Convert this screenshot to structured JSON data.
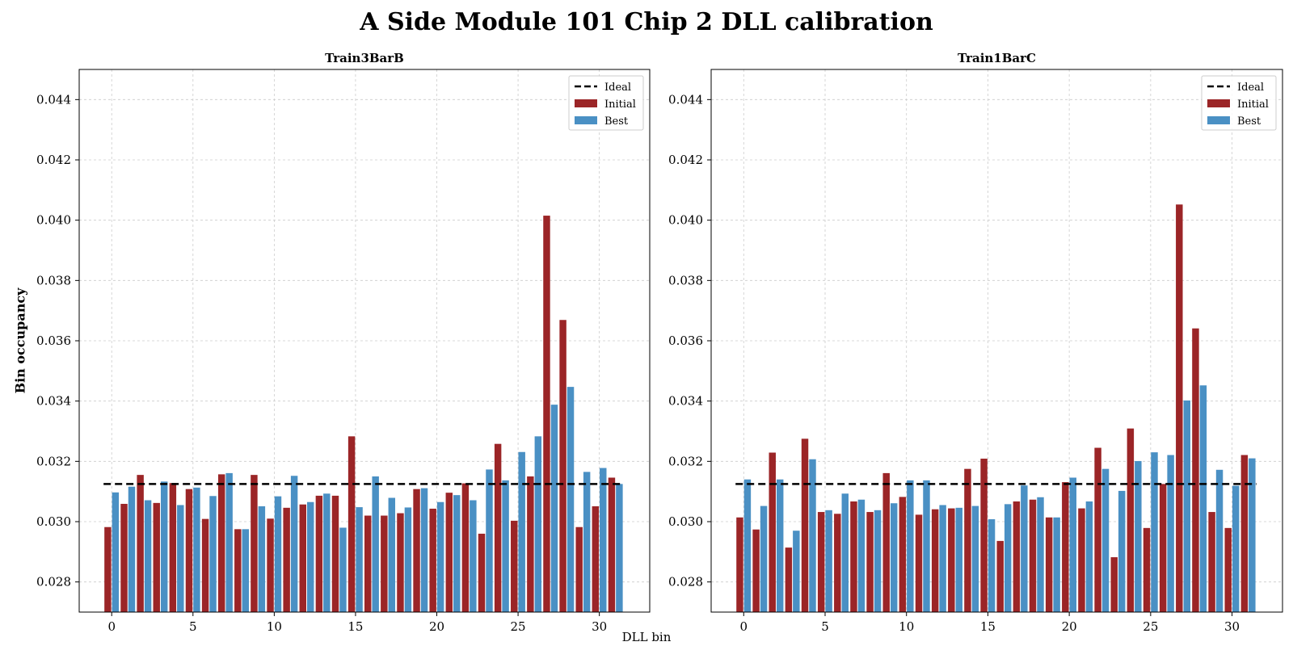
{
  "figure": {
    "title": "A Side Module 101 Chip 2 DLL calibration",
    "xlabel": "DLL bin",
    "ylabel": "Bin occupancy"
  },
  "colors": {
    "initial": "#9b2527",
    "best": "#4a90c4",
    "ideal": "#000000",
    "grid": "#cccccc"
  },
  "chart_data": [
    {
      "type": "bar",
      "title": "Train3BarB",
      "xlabel": "DLL bin",
      "ylabel": "Bin occupancy",
      "x": [
        0,
        1,
        2,
        3,
        4,
        5,
        6,
        7,
        8,
        9,
        10,
        11,
        12,
        13,
        14,
        15,
        16,
        17,
        18,
        19,
        20,
        21,
        22,
        23,
        24,
        25,
        26,
        27,
        28,
        29,
        30,
        31
      ],
      "xticks": [
        0,
        5,
        10,
        15,
        20,
        25,
        30
      ],
      "yticks": [
        0.028,
        0.03,
        0.032,
        0.034,
        0.036,
        0.038,
        0.04,
        0.042,
        0.044
      ],
      "xlim": [
        -2,
        33.1
      ],
      "ylim": [
        0.027,
        0.045
      ],
      "grid": true,
      "legend_position": "top-right",
      "ideal": 0.03125,
      "series": [
        {
          "name": "Ideal",
          "kind": "dashed-line",
          "value": 0.03125
        },
        {
          "name": "Initial",
          "kind": "bar",
          "values": [
            0.02982,
            0.03059,
            0.03155,
            0.03062,
            0.03128,
            0.03108,
            0.03009,
            0.03157,
            0.02975,
            0.03155,
            0.0301,
            0.03046,
            0.03057,
            0.03086,
            0.03086,
            0.03283,
            0.0302,
            0.0302,
            0.03028,
            0.03108,
            0.03043,
            0.03096,
            0.03127,
            0.0296,
            0.03258,
            0.03003,
            0.0315,
            0.04015,
            0.03669,
            0.02982,
            0.03051,
            0.03146
          ]
        },
        {
          "name": "Best",
          "kind": "bar",
          "values": [
            0.03097,
            0.03116,
            0.03071,
            0.03133,
            0.03055,
            0.03113,
            0.03085,
            0.03161,
            0.02975,
            0.03051,
            0.03084,
            0.03152,
            0.03065,
            0.03093,
            0.0298,
            0.03048,
            0.0315,
            0.03079,
            0.03047,
            0.03111,
            0.03065,
            0.03088,
            0.03071,
            0.03173,
            0.03137,
            0.03231,
            0.03283,
            0.03388,
            0.03447,
            0.03165,
            0.03178,
            0.03125
          ]
        }
      ]
    },
    {
      "type": "bar",
      "title": "Train1BarC",
      "xlabel": "DLL bin",
      "ylabel": "Bin occupancy",
      "x": [
        0,
        1,
        2,
        3,
        4,
        5,
        6,
        7,
        8,
        9,
        10,
        11,
        12,
        13,
        14,
        15,
        16,
        17,
        18,
        19,
        20,
        21,
        22,
        23,
        24,
        25,
        26,
        27,
        28,
        29,
        30,
        31
      ],
      "xticks": [
        0,
        5,
        10,
        15,
        20,
        25,
        30
      ],
      "yticks": [
        0.028,
        0.03,
        0.032,
        0.034,
        0.036,
        0.038,
        0.04,
        0.042,
        0.044
      ],
      "xlim": [
        -2,
        33.1
      ],
      "ylim": [
        0.027,
        0.045
      ],
      "grid": true,
      "legend_position": "top-right",
      "ideal": 0.03125,
      "series": [
        {
          "name": "Ideal",
          "kind": "dashed-line",
          "value": 0.03125
        },
        {
          "name": "Initial",
          "kind": "bar",
          "values": [
            0.03014,
            0.02974,
            0.03229,
            0.02914,
            0.03275,
            0.03032,
            0.03026,
            0.03067,
            0.03032,
            0.03161,
            0.03082,
            0.03023,
            0.03041,
            0.03044,
            0.03175,
            0.03209,
            0.02936,
            0.03067,
            0.03073,
            0.03014,
            0.03131,
            0.03044,
            0.03245,
            0.02882,
            0.03309,
            0.02979,
            0.03125,
            0.04052,
            0.03641,
            0.03032,
            0.02979,
            0.03221
          ]
        },
        {
          "name": "Best",
          "kind": "bar",
          "values": [
            0.0314,
            0.03052,
            0.0314,
            0.0297,
            0.03207,
            0.03038,
            0.03093,
            0.03073,
            0.03038,
            0.03061,
            0.03137,
            0.03137,
            0.03055,
            0.03046,
            0.03052,
            0.03008,
            0.03058,
            0.0312,
            0.03081,
            0.03014,
            0.03146,
            0.03067,
            0.03175,
            0.03102,
            0.03201,
            0.0323,
            0.03221,
            0.03402,
            0.03452,
            0.03172,
            0.03119,
            0.0321
          ]
        }
      ]
    }
  ]
}
